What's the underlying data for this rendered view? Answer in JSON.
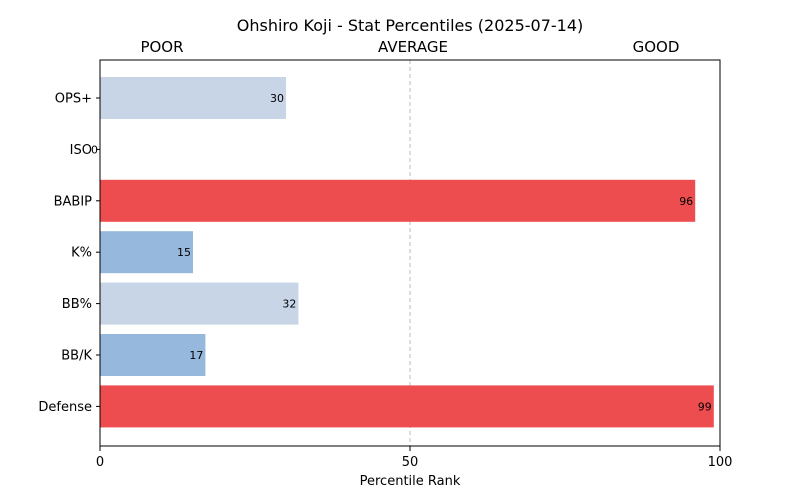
{
  "chart_data": {
    "type": "bar",
    "orientation": "horizontal",
    "title": "Ohshiro Koji - Stat Percentiles (2025-07-14)",
    "xlabel": "Percentile Rank",
    "ylabel": "",
    "xlim": [
      0,
      100
    ],
    "xticks": [
      0,
      50,
      100
    ],
    "band_labels": [
      "POOR",
      "AVERAGE",
      "GOOD"
    ],
    "reference_line": 50,
    "categories": [
      "OPS+",
      "ISO",
      "BABIP",
      "K%",
      "BB%",
      "BB/K",
      "Defense"
    ],
    "values": [
      30,
      0,
      96,
      15,
      32,
      17,
      99
    ],
    "bar_colors": [
      "#c8d5e7",
      "#95b8dc",
      "#ee4d4f",
      "#95b8dc",
      "#c8d5e7",
      "#95b8dc",
      "#ee4d4f"
    ],
    "grid": false
  }
}
